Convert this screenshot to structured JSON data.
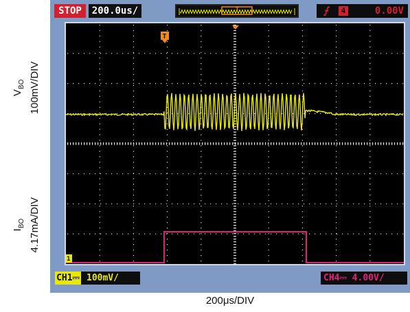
{
  "status": "STOP",
  "timebase": "200.0us/",
  "trigger": {
    "edge_icon": "rising-edge-icon",
    "channel": "4",
    "level": "0.00V",
    "marker": "T"
  },
  "channels": {
    "ch1": {
      "tag": "CH1",
      "coupling_icon": "dc-coupling-icon",
      "scale": "100mV/"
    },
    "ch4": {
      "label": "CH4⎓ 4.00V/"
    }
  },
  "y_labels": {
    "voltage": {
      "symbol": "V",
      "subscript": "BO",
      "scale": "100mV/DIV"
    },
    "current": {
      "symbol": "I",
      "subscript": "BO",
      "scale": "4.17mA/DIV"
    }
  },
  "x_label": "200μs/DIV",
  "colors": {
    "frame": "#7f9bc5",
    "ch1": "#e8e800",
    "ch4": "#e0207a",
    "trigger": "#d2202f",
    "marker": "#f08c1e"
  }
}
